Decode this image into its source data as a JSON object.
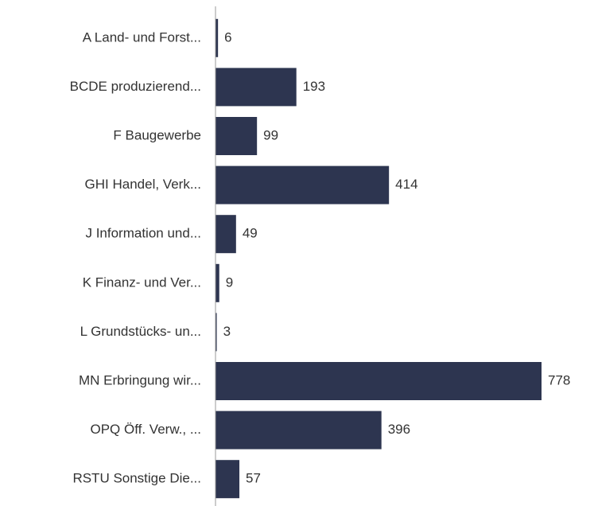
{
  "chart_data": {
    "type": "bar",
    "orientation": "horizontal",
    "categories": [
      "A Land- und Forst...",
      "BCDE produzierend...",
      "F Baugewerbe",
      "GHI Handel, Verk...",
      "J Information und...",
      "K Finanz- und Ver...",
      "L Grundstücks- un...",
      "MN Erbringung wir...",
      "OPQ Öff. Verw., ...",
      "RSTU Sonstige Die..."
    ],
    "values": [
      6,
      193,
      99,
      414,
      49,
      9,
      3,
      778,
      396,
      57
    ],
    "color": "#2d3550"
  }
}
